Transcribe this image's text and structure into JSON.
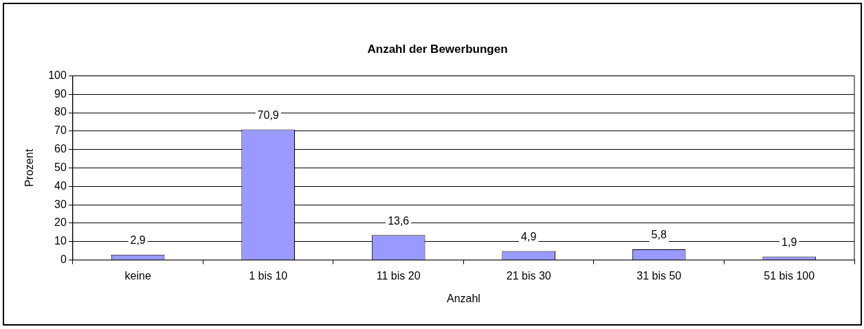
{
  "chart_data": {
    "type": "bar",
    "title": "Anzahl der Bewerbungen",
    "xlabel": "Anzahl",
    "ylabel": "Prozent",
    "categories": [
      "keine",
      "1 bis 10",
      "11 bis 20",
      "21 bis 30",
      "31 bis 50",
      "51 bis 100"
    ],
    "values": [
      2.9,
      70.9,
      13.6,
      4.9,
      5.8,
      1.9
    ],
    "value_labels": [
      "2,9",
      "70,9",
      "13,6",
      "4,9",
      "5,8",
      "1,9"
    ],
    "color": "#9999ff",
    "ylim": [
      0,
      100
    ],
    "yticks": [
      0,
      10,
      20,
      30,
      40,
      50,
      60,
      70,
      80,
      90,
      100
    ],
    "grid": "y",
    "legend": false
  }
}
